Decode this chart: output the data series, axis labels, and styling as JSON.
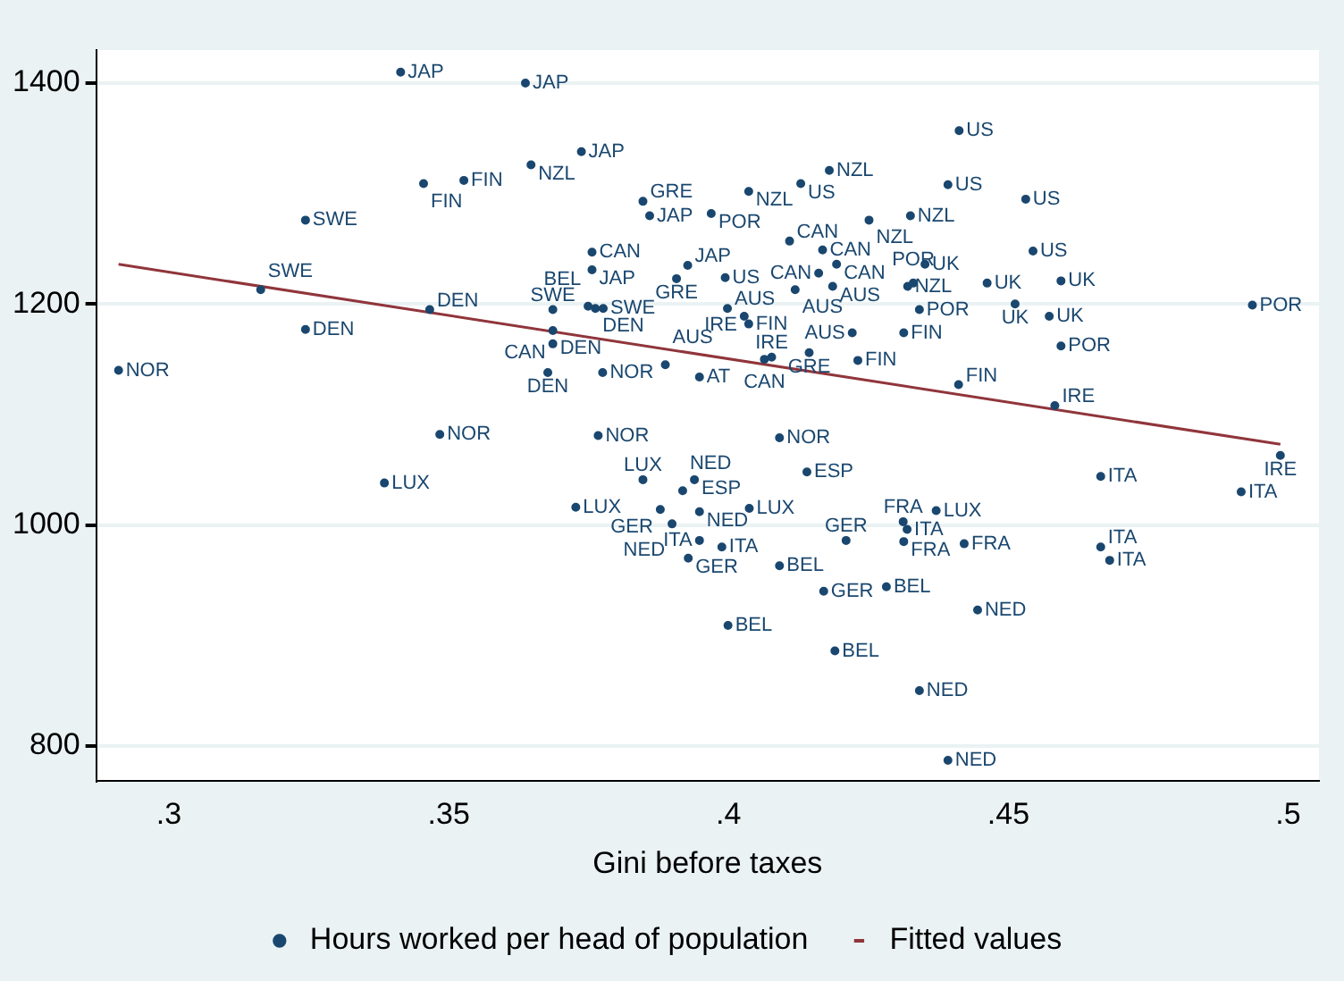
{
  "chart_data": {
    "type": "scatter",
    "xlabel": "Gini before taxes",
    "xlim": [
      0.287,
      0.5055
    ],
    "ylim": [
      768,
      1430
    ],
    "xticks": [
      {
        "value": 0.3,
        "label": ".3"
      },
      {
        "value": 0.35,
        "label": ".35"
      },
      {
        "value": 0.4,
        "label": ".4"
      },
      {
        "value": 0.45,
        "label": ".45"
      },
      {
        "value": 0.5,
        "label": ".5"
      }
    ],
    "yticks": [
      800,
      1000,
      1200,
      1400
    ],
    "grid": "y",
    "legend": "bottom",
    "marker": "circle",
    "series": [
      {
        "name": "Hours worked per head of population",
        "type": "scatter",
        "color": "#1a476f",
        "x": [
          0.3414,
          0.3637,
          0.3737,
          0.3647,
          0.3455,
          0.3527,
          0.3244,
          0.3164,
          0.3244,
          0.291,
          0.3466,
          0.3847,
          0.3859,
          0.3756,
          0.3756,
          0.3907,
          0.3927,
          0.3686,
          0.3749,
          0.3762,
          0.3776,
          0.3686,
          0.3686,
          0.3677,
          0.3775,
          0.3887,
          0.3948,
          0.4412,
          0.4392,
          0.4531,
          0.418,
          0.4129,
          0.4036,
          0.3969,
          0.4251,
          0.4325,
          0.4544,
          0.4109,
          0.4168,
          0.4193,
          0.4161,
          0.4119,
          0.4186,
          0.4351,
          0.432,
          0.433,
          0.4341,
          0.4462,
          0.4594,
          0.4512,
          0.4573,
          0.4594,
          0.4936,
          0.4313,
          0.4221,
          0.4411,
          0.4583,
          0.4091,
          0.3998,
          0.4036,
          0.4028,
          0.4064,
          0.4077,
          0.4144,
          0.4231,
          0.3994,
          0.3484,
          0.3767,
          0.3385,
          0.3847,
          0.3727,
          0.3878,
          0.3899,
          0.3918,
          0.3928,
          0.3948,
          0.3939,
          0.4037,
          0.3948,
          0.3988,
          0.4091,
          0.421,
          0.4312,
          0.4319,
          0.4313,
          0.4371,
          0.4421,
          0.414,
          0.4665,
          0.4916,
          0.4986,
          0.4665,
          0.4681,
          0.417,
          0.4282,
          0.4445,
          0.3999,
          0.419,
          0.4341,
          0.4392
        ],
        "values": [
          1410,
          1400,
          1338,
          1326,
          1309,
          1312,
          1276,
          1213,
          1177,
          1140,
          1195,
          1293,
          1280,
          1247,
          1231,
          1223,
          1235,
          1195,
          1198,
          1196,
          1196,
          1176,
          1164,
          1138,
          1138,
          1145,
          1134,
          1357,
          1308,
          1295,
          1321,
          1309,
          1302,
          1282,
          1276,
          1280,
          1248,
          1257,
          1249,
          1236,
          1228,
          1213,
          1216,
          1236,
          1216,
          1219,
          1195,
          1219,
          1221,
          1200,
          1189,
          1162,
          1199,
          1174,
          1174,
          1127,
          1108,
          1079,
          1196,
          1182,
          1189,
          1150,
          1152,
          1156,
          1149,
          1224,
          1082,
          1081,
          1038,
          1041,
          1016,
          1014,
          1001,
          1031,
          970,
          986,
          1041,
          1015,
          1012,
          980,
          963,
          986,
          1003,
          996,
          985,
          1013,
          983,
          1048,
          1044,
          1030,
          1063,
          980,
          968,
          940,
          944,
          923,
          909,
          886,
          850,
          787
        ],
        "value_labels": [
          "JAP",
          "JAP",
          "JAP",
          "NZL",
          "FIN",
          "FIN",
          "SWE",
          "SWE",
          "DEN",
          "NOR",
          "DEN",
          "GRE",
          "JAP",
          "CAN",
          "JAP",
          "GRE",
          "JAP",
          "SWE",
          "BEL",
          "DEN",
          "SWE",
          "DEN",
          "CAN",
          "DEN",
          "NOR",
          "AUS",
          "AT",
          "US",
          "US",
          "US",
          "NZL",
          "US",
          "NZL",
          "POR",
          "NZL",
          "NZL",
          "US",
          "CAN",
          "CAN",
          "CAN",
          "CAN",
          "AUS",
          "AUS",
          "UK",
          "NZL",
          "POR",
          "POR",
          "UK",
          "UK",
          "UK",
          "UK",
          "POR",
          "POR",
          "FIN",
          "AUS",
          "FIN",
          "IRE",
          "NOR",
          "AUS",
          "FIN",
          "IRE",
          "CAN",
          "IRE",
          "GRE",
          "FIN",
          "US",
          "NOR",
          "NOR",
          "LUX",
          "LUX",
          "LUX",
          "GER",
          "NED",
          "NED",
          "GER",
          "ITA",
          "ESP",
          "LUX",
          "NED",
          "ITA",
          "BEL",
          "GER",
          "FRA",
          "ITA",
          "FRA",
          "LUX",
          "FRA",
          "ESP",
          "ITA",
          "ITA",
          "IRE",
          "ITA",
          "ITA",
          "GER",
          "BEL",
          "NED",
          "BEL",
          "BEL",
          "NED",
          "NED"
        ]
      },
      {
        "name": "Fitted values",
        "type": "line",
        "color": "#90353b",
        "marker": "none",
        "x": [
          0.291,
          0.4986
        ],
        "values": [
          1236,
          1073
        ]
      }
    ]
  }
}
